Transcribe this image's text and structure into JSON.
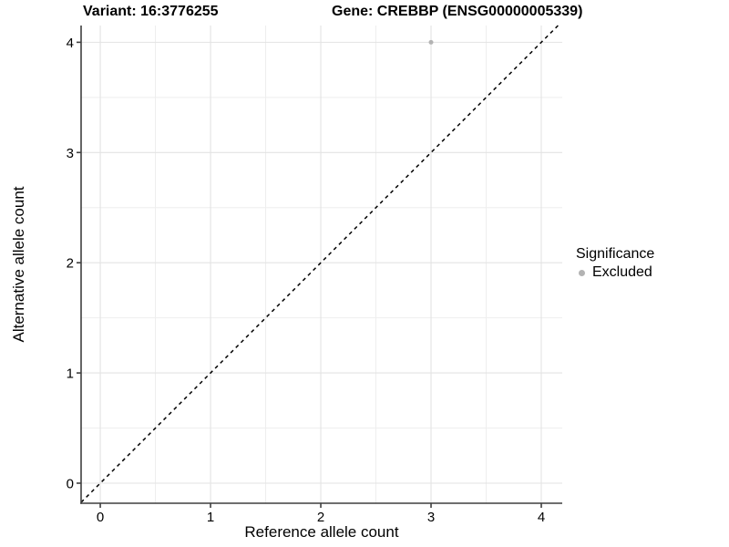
{
  "titles": {
    "variant": "Variant: 16:3776255",
    "gene": "Gene: CREBBP (ENSG00000005339)"
  },
  "colors": {
    "point": "#b3b3b3",
    "grid_major": "#e3e3e3",
    "grid_minor": "#eeeeee",
    "axis": "#3f3f3f",
    "reference_line": "#000000",
    "background": "#ffffff",
    "text": "#000000"
  },
  "chart_data": {
    "type": "scatter",
    "title_left": "Variant: 16:3776255",
    "title_right": "Gene: CREBBP (ENSG00000005339)",
    "xlabel": "Reference allele count",
    "ylabel": "Alternative allele count",
    "x_ticks": [
      0,
      1,
      2,
      3,
      4
    ],
    "y_ticks": [
      0,
      1,
      2,
      3,
      4
    ],
    "minor_x": [
      0.5,
      1.5,
      2.5,
      3.5
    ],
    "minor_y": [
      0.5,
      1.5,
      2.5,
      3.5
    ],
    "xlim": [
      -0.174,
      4.19
    ],
    "ylim": [
      -0.182,
      4.152
    ],
    "grid": true,
    "reference_line": {
      "slope": 1,
      "intercept": 0,
      "style": "dashed",
      "color": "#000000"
    },
    "series": [
      {
        "name": "Excluded",
        "color": "#b3b3b3",
        "points": [
          {
            "x": 3,
            "y": 4
          }
        ]
      }
    ],
    "legend": {
      "title": "Significance",
      "position": "right",
      "entries": [
        {
          "label": "Excluded",
          "color": "#b3b3b3"
        }
      ]
    }
  }
}
